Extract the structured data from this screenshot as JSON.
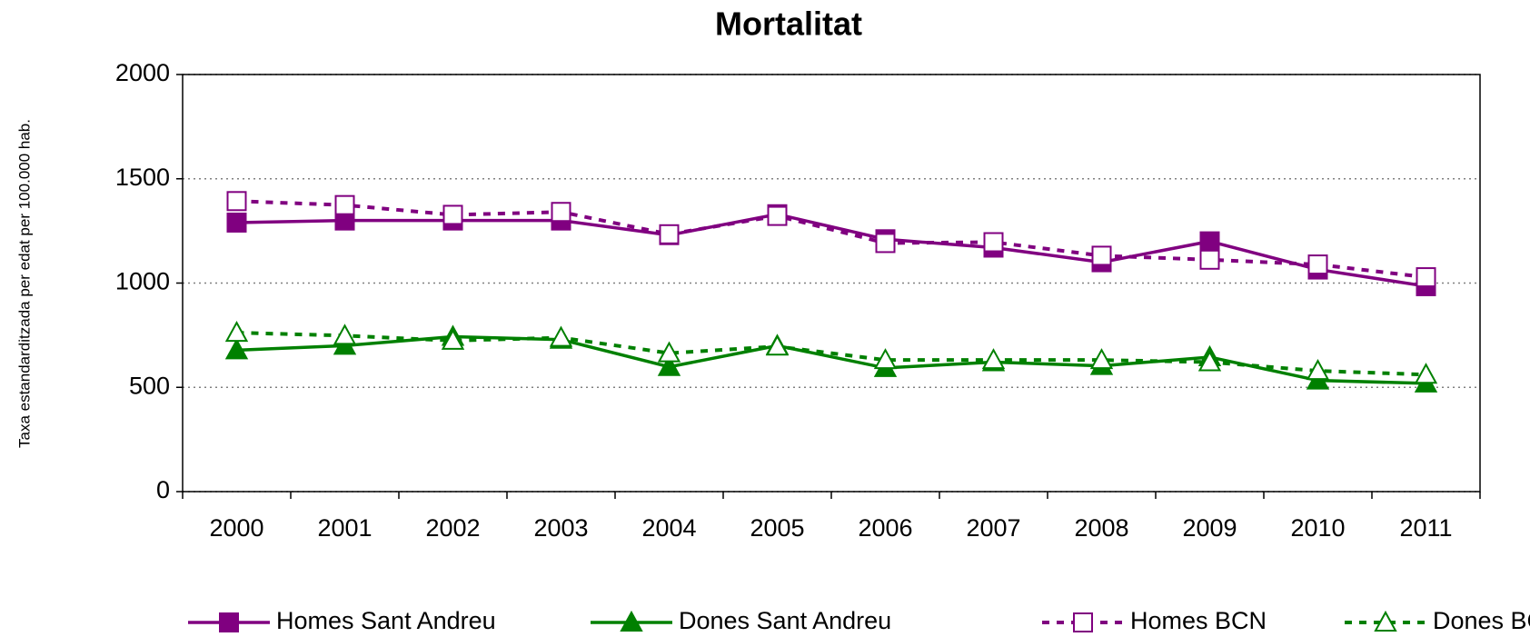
{
  "chart_data": {
    "type": "line",
    "title": "Mortalitat",
    "y_label": "Taxa estandarditzada per edat per 100.000 hab.",
    "categories": [
      "2000",
      "2001",
      "2002",
      "2003",
      "2004",
      "2005",
      "2006",
      "2007",
      "2008",
      "2009",
      "2010",
      "2011"
    ],
    "ylim": [
      0,
      2000
    ],
    "yticks": [
      0,
      500,
      1000,
      1500,
      2000
    ],
    "grid": true,
    "legend": "bottom",
    "series": [
      {
        "name": "Homes Sant Andreu",
        "color": "#800080",
        "dashed": false,
        "marker": "square",
        "filled": true,
        "values": [
          1290,
          1300,
          1300,
          1300,
          1230,
          1330,
          1210,
          1170,
          1100,
          1200,
          1065,
          985
        ]
      },
      {
        "name": "Dones Sant Andreu",
        "color": "#008000",
        "dashed": false,
        "marker": "triangle",
        "filled": true,
        "values": [
          678,
          700,
          743,
          729,
          598,
          700,
          593,
          621,
          603,
          645,
          533,
          519
        ]
      },
      {
        "name": "Homes BCN",
        "color": "#800080",
        "dashed": true,
        "marker": "square",
        "filled": false,
        "values": [
          1393,
          1374,
          1327,
          1341,
          1234,
          1322,
          1192,
          1196,
          1131,
          1112,
          1089,
          1028
        ]
      },
      {
        "name": "Dones BCN",
        "color": "#008000",
        "dashed": true,
        "marker": "triangle",
        "filled": false,
        "values": [
          762,
          748,
          724,
          738,
          664,
          696,
          631,
          631,
          631,
          621,
          579,
          561
        ]
      }
    ]
  }
}
